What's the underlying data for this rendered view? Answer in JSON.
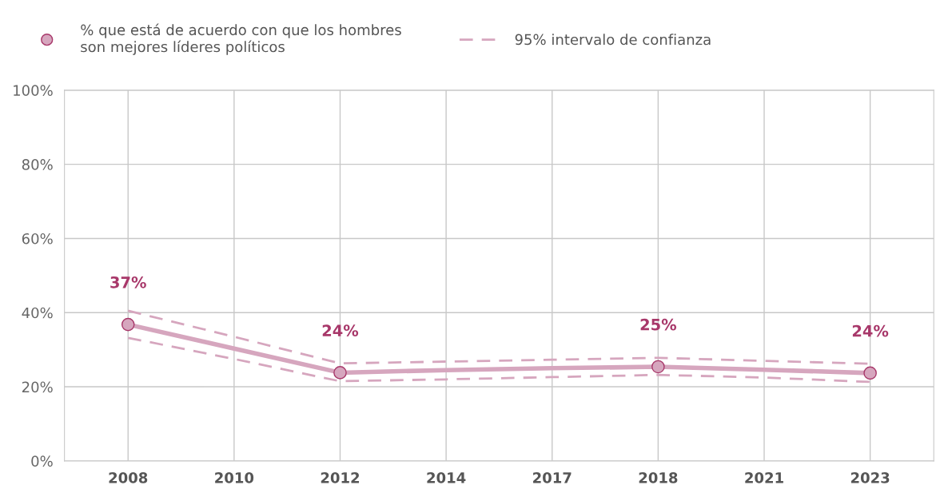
{
  "chart_data": {
    "type": "line",
    "categories": [
      "2008",
      "2010",
      "2012",
      "2014",
      "2017",
      "2018",
      "2021",
      "2023"
    ],
    "series": [
      {
        "color": "#d6a6be",
        "values": [
          36.8,
          30.3,
          23.8,
          24.5,
          25.0,
          25.4,
          24.6,
          23.7
        ]
      },
      {
        "name": "% que está de acuerdo con que los hombres\nson mejores líderes políticos",
        "type": "scatter",
        "color": "#d6a6be",
        "marker": "circle",
        "values": [
          36.8,
          null,
          23.8,
          null,
          null,
          25.4,
          null,
          23.7
        ],
        "value_labels": [
          "37%",
          null,
          "24%",
          null,
          null,
          "25%",
          null,
          "24%"
        ]
      },
      {
        "name": "95% intervalo de confianza",
        "color": "#d6a6be",
        "line_style": "dashed",
        "values": [
          40.5,
          33.5,
          26.3,
          26.8,
          27.3,
          27.8,
          27.0,
          26.2
        ]
      },
      {
        "color": "#d6a6be",
        "line_style": "dashed",
        "values": [
          33.2,
          27.5,
          21.5,
          22.0,
          22.6,
          23.2,
          22.5,
          21.3
        ]
      }
    ],
    "ylim": [
      0,
      100
    ],
    "yticks": [
      {
        "value": 0,
        "label": "0%"
      },
      {
        "value": 20,
        "label": "20%"
      },
      {
        "value": 40,
        "label": "40%"
      },
      {
        "value": 60,
        "label": "60%"
      },
      {
        "value": 80,
        "label": "80%"
      },
      {
        "value": 100,
        "label": "100%"
      }
    ],
    "grid": true,
    "legend": "top left"
  }
}
